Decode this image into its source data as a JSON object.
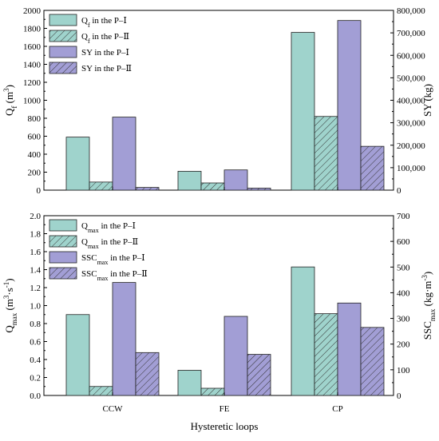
{
  "colors": {
    "p1": "#9fd3cc",
    "p2": "#9fd3cc",
    "sy1": "#a29ed5",
    "sy2": "#a29ed5",
    "stroke": "#222222"
  },
  "xaxis_title": "Hysteretic loops",
  "chart_data": [
    {
      "type": "bar",
      "categories": [
        "CCW",
        "FE",
        "CP"
      ],
      "left_axis": {
        "label_main": "Q",
        "label_sub": "f",
        "label_unit_pre": " (m",
        "label_unit_sup": "3",
        "label_unit_post": ")",
        "ylim": [
          0,
          2000
        ],
        "ticks": [
          "0",
          "200",
          "400",
          "600",
          "800",
          "1000",
          "1200",
          "1400",
          "1600",
          "1800",
          "2000"
        ]
      },
      "right_axis": {
        "label": "SY (kg)",
        "ylim": [
          0,
          800000
        ],
        "ticks": [
          "0",
          "100,000",
          "200,000",
          "300,000",
          "400,000",
          "500,000",
          "600,000",
          "700,000",
          "800,000"
        ]
      },
      "series": [
        {
          "name_main": "Q",
          "name_sub": "f",
          "name_rest": " in the P–Ⅰ",
          "axis": "left",
          "hatched": false,
          "color_key": "p1",
          "values": [
            590,
            210,
            1755
          ]
        },
        {
          "name_main": "Q",
          "name_sub": "f",
          "name_rest": " in the P–Ⅱ",
          "axis": "left",
          "hatched": true,
          "color_key": "p2",
          "values": [
            90,
            80,
            820
          ]
        },
        {
          "name_main": "SY",
          "name_sub": "",
          "name_rest": " in the P–Ⅰ",
          "axis": "right",
          "hatched": false,
          "color_key": "sy1",
          "values": [
            325000,
            90000,
            755000
          ]
        },
        {
          "name_main": "SY",
          "name_sub": "",
          "name_rest": " in the P–Ⅱ",
          "axis": "right",
          "hatched": true,
          "color_key": "sy2",
          "values": [
            12000,
            9000,
            195000
          ]
        }
      ],
      "legend_position": "top-left"
    },
    {
      "type": "bar",
      "categories": [
        "CCW",
        "FE",
        "CP"
      ],
      "left_axis": {
        "label_main": "Q",
        "label_sub": "max",
        "label_unit_pre": " (m",
        "label_unit_sup": "3",
        "label_unit_mid": "·s",
        "label_unit_sup2": "-1",
        "label_unit_post": ")",
        "ylim": [
          0,
          2.0
        ],
        "ticks": [
          "0.0",
          "0.2",
          "0.4",
          "0.6",
          "0.8",
          "1.0",
          "1.2",
          "1.4",
          "1.6",
          "1.8",
          "2.0"
        ]
      },
      "right_axis": {
        "label_main": "SSC",
        "label_sub": "max",
        "label_unit_pre": " (kg·m",
        "label_unit_sup": "-3",
        "label_unit_post": ")",
        "ylim": [
          0,
          700
        ],
        "ticks": [
          "0",
          "100",
          "200",
          "300",
          "400",
          "500",
          "600",
          "700"
        ]
      },
      "series": [
        {
          "name_main": "Q",
          "name_sub": "max",
          "name_rest": " in the P–Ⅰ",
          "axis": "left",
          "hatched": false,
          "color_key": "p1",
          "values": [
            0.9,
            0.28,
            1.43
          ]
        },
        {
          "name_main": "Q",
          "name_sub": "max",
          "name_rest": " in the P–Ⅱ",
          "axis": "left",
          "hatched": true,
          "color_key": "p2",
          "values": [
            0.1,
            0.08,
            0.91
          ]
        },
        {
          "name_main": "SSC",
          "name_sub": "max",
          "name_rest": " in the P–Ⅰ",
          "axis": "right",
          "hatched": false,
          "color_key": "sy1",
          "values": [
            440,
            308,
            360
          ]
        },
        {
          "name_main": "SSC",
          "name_sub": "max",
          "name_rest": " in the P–Ⅱ",
          "axis": "right",
          "hatched": true,
          "color_key": "sy2",
          "values": [
            167,
            160,
            265
          ]
        }
      ],
      "legend_position": "top-left"
    }
  ]
}
